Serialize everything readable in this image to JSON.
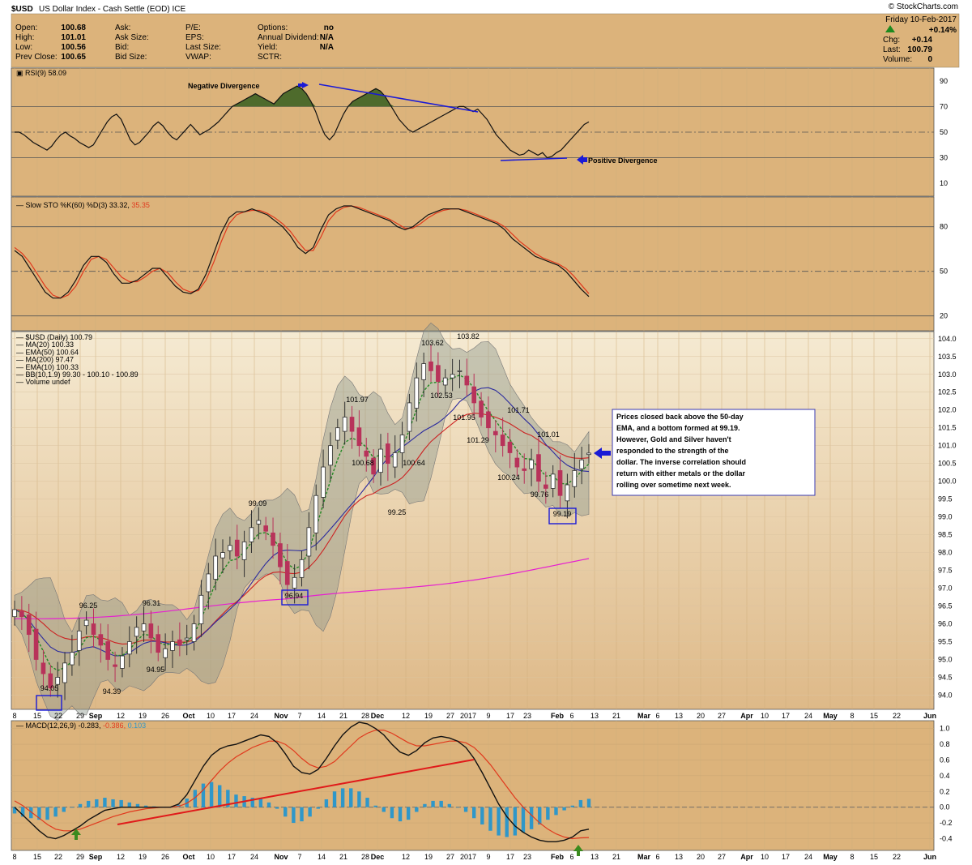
{
  "header": {
    "symbol": "$USD",
    "description": "US Dollar Index - Cash Settle (EOD) ICE",
    "watermark": "© StockCharts.com",
    "date": "Friday  10-Feb-2017",
    "change_pct": "+0.14%",
    "quote_rows": [
      [
        {
          "label": "Open:",
          "value": "100.68"
        },
        {
          "label": "Ask:",
          "value": ""
        },
        {
          "label": "P/E:",
          "value": ""
        },
        {
          "label": "Options:",
          "value": "no"
        }
      ],
      [
        {
          "label": "High:",
          "value": "101.01"
        },
        {
          "label": "Ask Size:",
          "value": ""
        },
        {
          "label": "EPS:",
          "value": ""
        },
        {
          "label": "Annual Dividend:",
          "value": "N/A"
        }
      ],
      [
        {
          "label": "Low:",
          "value": "100.56"
        },
        {
          "label": "Bid:",
          "value": ""
        },
        {
          "label": "Last Size:",
          "value": ""
        },
        {
          "label": "Yield:",
          "value": "N/A"
        }
      ],
      [
        {
          "label": "Prev Close:",
          "value": "100.65"
        },
        {
          "label": "Bid Size:",
          "value": ""
        },
        {
          "label": "VWAP:",
          "value": ""
        },
        {
          "label": "SCTR:",
          "value": ""
        }
      ]
    ],
    "right_rows": [
      {
        "label": "Chg:",
        "value": "+0.14"
      },
      {
        "label": "Last:",
        "value": "100.79"
      },
      {
        "label": "Volume:",
        "value": "0"
      }
    ]
  },
  "colors": {
    "panel_bg": "#dcb37b",
    "price_bg_top": "#f4e8cf",
    "price_bg_bottom": "#e0bc8a",
    "up": "#2f2f2f",
    "down": "#b8325a",
    "ma20": "#2a2a9e",
    "ema50": "#cc2222",
    "ma200": "#e620d0",
    "ema10": "#228822",
    "bband": "#8f9a8f",
    "rsi_fill": "#4e6b2c",
    "annot_blue": "#1a1ad6",
    "macd_hist": "#2f97c9",
    "arrow_green": "#3b8a1e"
  },
  "x_axis_labels": [
    "8",
    "15",
    "22",
    "29",
    "Sep",
    "12",
    "19",
    "26",
    "Oct",
    "10",
    "17",
    "24",
    "Nov",
    "7",
    "14",
    "21",
    "28",
    "Dec",
    "12",
    "19",
    "27",
    "2017",
    "9",
    "17",
    "23",
    "Feb",
    "6",
    "13",
    "21",
    "Mar",
    "6",
    "13",
    "20",
    "27",
    "Apr",
    "10",
    "17",
    "24",
    "May",
    "8",
    "15",
    "22",
    "Jun"
  ],
  "rsi": {
    "legend": "RSI(9) 58.09",
    "ticks": [
      "90",
      "70",
      "50",
      "30",
      "10"
    ],
    "values": [
      50,
      50,
      48,
      45,
      42,
      40,
      38,
      36,
      39,
      44,
      48,
      50,
      47,
      45,
      42,
      40,
      38,
      40,
      46,
      52,
      58,
      62,
      64,
      60,
      52,
      44,
      40,
      42,
      46,
      50,
      55,
      58,
      55,
      50,
      46,
      44,
      48,
      52,
      56,
      52,
      48,
      50,
      52,
      55,
      58,
      62,
      66,
      70,
      72,
      74,
      76,
      78,
      80,
      78,
      76,
      74,
      72,
      76,
      80,
      82,
      84,
      86,
      84,
      80,
      74,
      66,
      56,
      48,
      44,
      48,
      56,
      64,
      70,
      74,
      76,
      78,
      80,
      82,
      84,
      82,
      78,
      72,
      66,
      60,
      56,
      52,
      50,
      52,
      54,
      56,
      58,
      60,
      62,
      64,
      66,
      68,
      70,
      70,
      68,
      66,
      68,
      64,
      60,
      54,
      48,
      44,
      40,
      36,
      34,
      32,
      33,
      36,
      34,
      32,
      34,
      30,
      31,
      34,
      36,
      40,
      44,
      48,
      52,
      56,
      58
    ],
    "neg_div_label": "Negative Divergence",
    "pos_div_label": "Positive Divergence"
  },
  "stoch": {
    "legend_prefix": "Slow STO %K(60) %D(3) 33.32,",
    "legend_d": "35.35",
    "ticks": [
      "80",
      "50",
      "20"
    ],
    "k": [
      64,
      60,
      52,
      44,
      36,
      32,
      32,
      36,
      44,
      54,
      60,
      60,
      56,
      48,
      42,
      42,
      44,
      48,
      52,
      52,
      46,
      40,
      36,
      35,
      38,
      48,
      62,
      76,
      86,
      90,
      90,
      92,
      90,
      88,
      84,
      80,
      74,
      66,
      62,
      66,
      78,
      88,
      92,
      94,
      94,
      92,
      90,
      88,
      86,
      84,
      80,
      78,
      80,
      84,
      88,
      90,
      92,
      92,
      92,
      90,
      88,
      86,
      84,
      82,
      78,
      72,
      68,
      64,
      60,
      58,
      56,
      54,
      50,
      44,
      38,
      33
    ],
    "d": [
      66,
      62,
      56,
      48,
      40,
      34,
      32,
      34,
      40,
      50,
      58,
      60,
      58,
      52,
      46,
      43,
      43,
      46,
      50,
      52,
      49,
      43,
      38,
      36,
      37,
      44,
      56,
      70,
      82,
      88,
      90,
      91,
      91,
      89,
      86,
      82,
      77,
      70,
      64,
      64,
      73,
      84,
      90,
      93,
      94,
      93,
      91,
      89,
      87,
      85,
      82,
      79,
      79,
      82,
      86,
      89,
      91,
      92,
      92,
      91,
      89,
      87,
      85,
      83,
      80,
      75,
      70,
      66,
      62,
      59,
      57,
      55,
      52,
      47,
      41,
      35
    ]
  },
  "price_legend": [
    {
      "text": "$USD (Daily) 100.79",
      "color": "#000000"
    },
    {
      "text": "MA(20) 100.33",
      "color": "#2a2a9e"
    },
    {
      "text": "EMA(50) 100.64",
      "color": "#cc2222"
    },
    {
      "text": "MA(200) 97.47",
      "color": "#e620d0"
    },
    {
      "text": "EMA(10) 100.33",
      "color": "#228822"
    },
    {
      "text": "BB(10,1.9) 99.30 - 100.10 - 100.89",
      "color": "#777777"
    },
    {
      "text": "Volume undef",
      "color": "#444444"
    }
  ],
  "price_ticks": [
    "104.0",
    "103.5",
    "103.0",
    "102.5",
    "102.0",
    "101.5",
    "101.0",
    "100.5",
    "100.0",
    "99.5",
    "99.0",
    "98.5",
    "98.0",
    "97.5",
    "97.0",
    "96.5",
    "96.0",
    "95.5",
    "95.0",
    "94.5",
    "94.0"
  ],
  "macd": {
    "legend_prefix": "MACD(12,26,9) -0.283,",
    "legend_signal": "-0.386,",
    "legend_hist": "0.103",
    "ticks": [
      "1.0",
      "0.8",
      "0.6",
      "0.4",
      "0.2",
      "0.0",
      "-0.2",
      "-0.4"
    ]
  },
  "annotation": {
    "text_lines": [
      "Prices closed back above the 50-day",
      "EMA, and a bottom formed at 99.19.",
      "However, Gold and Silver haven't",
      "responded to the strength of the",
      "dollar. The inverse correlation should",
      "return with either metals or the dollar",
      "rolling over sometime next week."
    ]
  },
  "chart_data": [
    {
      "type": "line",
      "panel": "RSI",
      "title": "RSI(9) 58.09",
      "ylim": [
        0,
        100
      ],
      "grid": true,
      "series": [
        {
          "name": "RSI(9)",
          "values_ref": "rsi.values"
        }
      ]
    },
    {
      "type": "line",
      "panel": "Slow STO",
      "title": "Slow STO %K(60) %D(3) 33.32, 35.35",
      "ylim": [
        10,
        100
      ],
      "series": [
        {
          "name": "%K(60)"
        },
        {
          "name": "%D(3)"
        }
      ]
    },
    {
      "type": "candlestick",
      "panel": "Price",
      "title": "$USD (Daily) 100.79",
      "ylim": [
        93.6,
        104.2
      ],
      "label_points": [
        {
          "label": "94.05",
          "value": 94.05
        },
        {
          "label": "96.25",
          "value": 96.25
        },
        {
          "label": "94.39",
          "value": 94.39
        },
        {
          "label": "96.31",
          "value": 96.31
        },
        {
          "label": "94.95",
          "value": 94.95
        },
        {
          "label": "99.09",
          "value": 99.09
        },
        {
          "label": "96.94",
          "value": 96.94
        },
        {
          "label": "101.97",
          "value": 101.97
        },
        {
          "label": "100.68",
          "value": 100.68
        },
        {
          "label": "99.25",
          "value": 99.25
        },
        {
          "label": "100.64",
          "value": 100.64
        },
        {
          "label": "103.62",
          "value": 103.62
        },
        {
          "label": "102.53",
          "value": 102.53
        },
        {
          "label": "103.82",
          "value": 103.82
        },
        {
          "label": "101.95",
          "value": 101.95
        },
        {
          "label": "101.29",
          "value": 101.29
        },
        {
          "label": "101.71",
          "value": 101.71
        },
        {
          "label": "100.24",
          "value": 100.24
        },
        {
          "label": "99.76",
          "value": 99.76
        },
        {
          "label": "101.01",
          "value": 101.01
        },
        {
          "label": "99.19",
          "value": 99.19
        }
      ],
      "closes": [
        96.4,
        96.2,
        95.7,
        95.0,
        94.6,
        94.2,
        94.5,
        94.9,
        95.2,
        95.8,
        96.1,
        95.7,
        95.4,
        95.0,
        94.8,
        95.1,
        95.5,
        95.9,
        96.0,
        95.6,
        95.2,
        95.3,
        95.5,
        95.4,
        95.6,
        96.0,
        96.8,
        97.4,
        97.9,
        98.0,
        98.2,
        97.9,
        98.3,
        98.7,
        98.9,
        98.6,
        98.2,
        97.6,
        97.1,
        97.3,
        97.8,
        98.7,
        99.6,
        100.4,
        101.0,
        101.5,
        101.8,
        101.4,
        101.0,
        100.7,
        100.2,
        100.9,
        100.5,
        100.8,
        101.3,
        102.2,
        102.9,
        103.3,
        103.1,
        102.8,
        102.9,
        103.0,
        103.1,
        102.7,
        102.2,
        101.8,
        101.5,
        101.3,
        101.0,
        100.8,
        100.4,
        100.3,
        100.6,
        100.0,
        99.8,
        100.2,
        99.6,
        99.9,
        100.3,
        100.6,
        100.79
      ],
      "series": [
        {
          "name": "MA(20)",
          "last": 100.33
        },
        {
          "name": "EMA(50)",
          "last": 100.64
        },
        {
          "name": "MA(200)",
          "last": 97.47
        },
        {
          "name": "EMA(10)",
          "last": 100.33
        }
      ]
    },
    {
      "type": "line",
      "panel": "MACD",
      "title": "MACD(12,26,9) -0.283, -0.386, 0.103",
      "ylim": [
        -0.55,
        1.1
      ],
      "macd": [
        0.0,
        -0.1,
        -0.2,
        -0.3,
        -0.38,
        -0.4,
        -0.36,
        -0.3,
        -0.24,
        -0.16,
        -0.1,
        -0.04,
        -0.02,
        0.0,
        0.0,
        0.0,
        0.0,
        0.0,
        0.0,
        0.0,
        0.04,
        0.16,
        0.34,
        0.52,
        0.66,
        0.74,
        0.78,
        0.8,
        0.84,
        0.88,
        0.92,
        0.9,
        0.82,
        0.68,
        0.52,
        0.44,
        0.42,
        0.48,
        0.62,
        0.78,
        0.92,
        1.02,
        1.08,
        1.06,
        1.0,
        0.92,
        0.8,
        0.7,
        0.66,
        0.72,
        0.82,
        0.88,
        0.9,
        0.88,
        0.84,
        0.76,
        0.62,
        0.44,
        0.24,
        0.04,
        -0.12,
        -0.24,
        -0.32,
        -0.38,
        -0.42,
        -0.44,
        -0.44,
        -0.42,
        -0.38,
        -0.3,
        -0.28
      ],
      "signal": [
        0.08,
        0.02,
        -0.06,
        -0.14,
        -0.22,
        -0.28,
        -0.3,
        -0.3,
        -0.28,
        -0.24,
        -0.2,
        -0.16,
        -0.12,
        -0.09,
        -0.06,
        -0.04,
        -0.02,
        -0.01,
        0.0,
        0.0,
        0.01,
        0.05,
        0.12,
        0.22,
        0.34,
        0.46,
        0.56,
        0.64,
        0.7,
        0.76,
        0.8,
        0.84,
        0.84,
        0.8,
        0.72,
        0.62,
        0.54,
        0.5,
        0.52,
        0.58,
        0.68,
        0.78,
        0.88,
        0.94,
        0.98,
        0.98,
        0.94,
        0.88,
        0.82,
        0.78,
        0.78,
        0.8,
        0.82,
        0.84,
        0.84,
        0.82,
        0.76,
        0.66,
        0.54,
        0.4,
        0.26,
        0.12,
        0.0,
        -0.1,
        -0.2,
        -0.28,
        -0.34,
        -0.38,
        -0.4,
        -0.39,
        -0.386
      ],
      "series": [
        {
          "name": "MACD(12,26,9)"
        },
        {
          "name": "Signal"
        },
        {
          "name": "Histogram"
        }
      ]
    }
  ]
}
